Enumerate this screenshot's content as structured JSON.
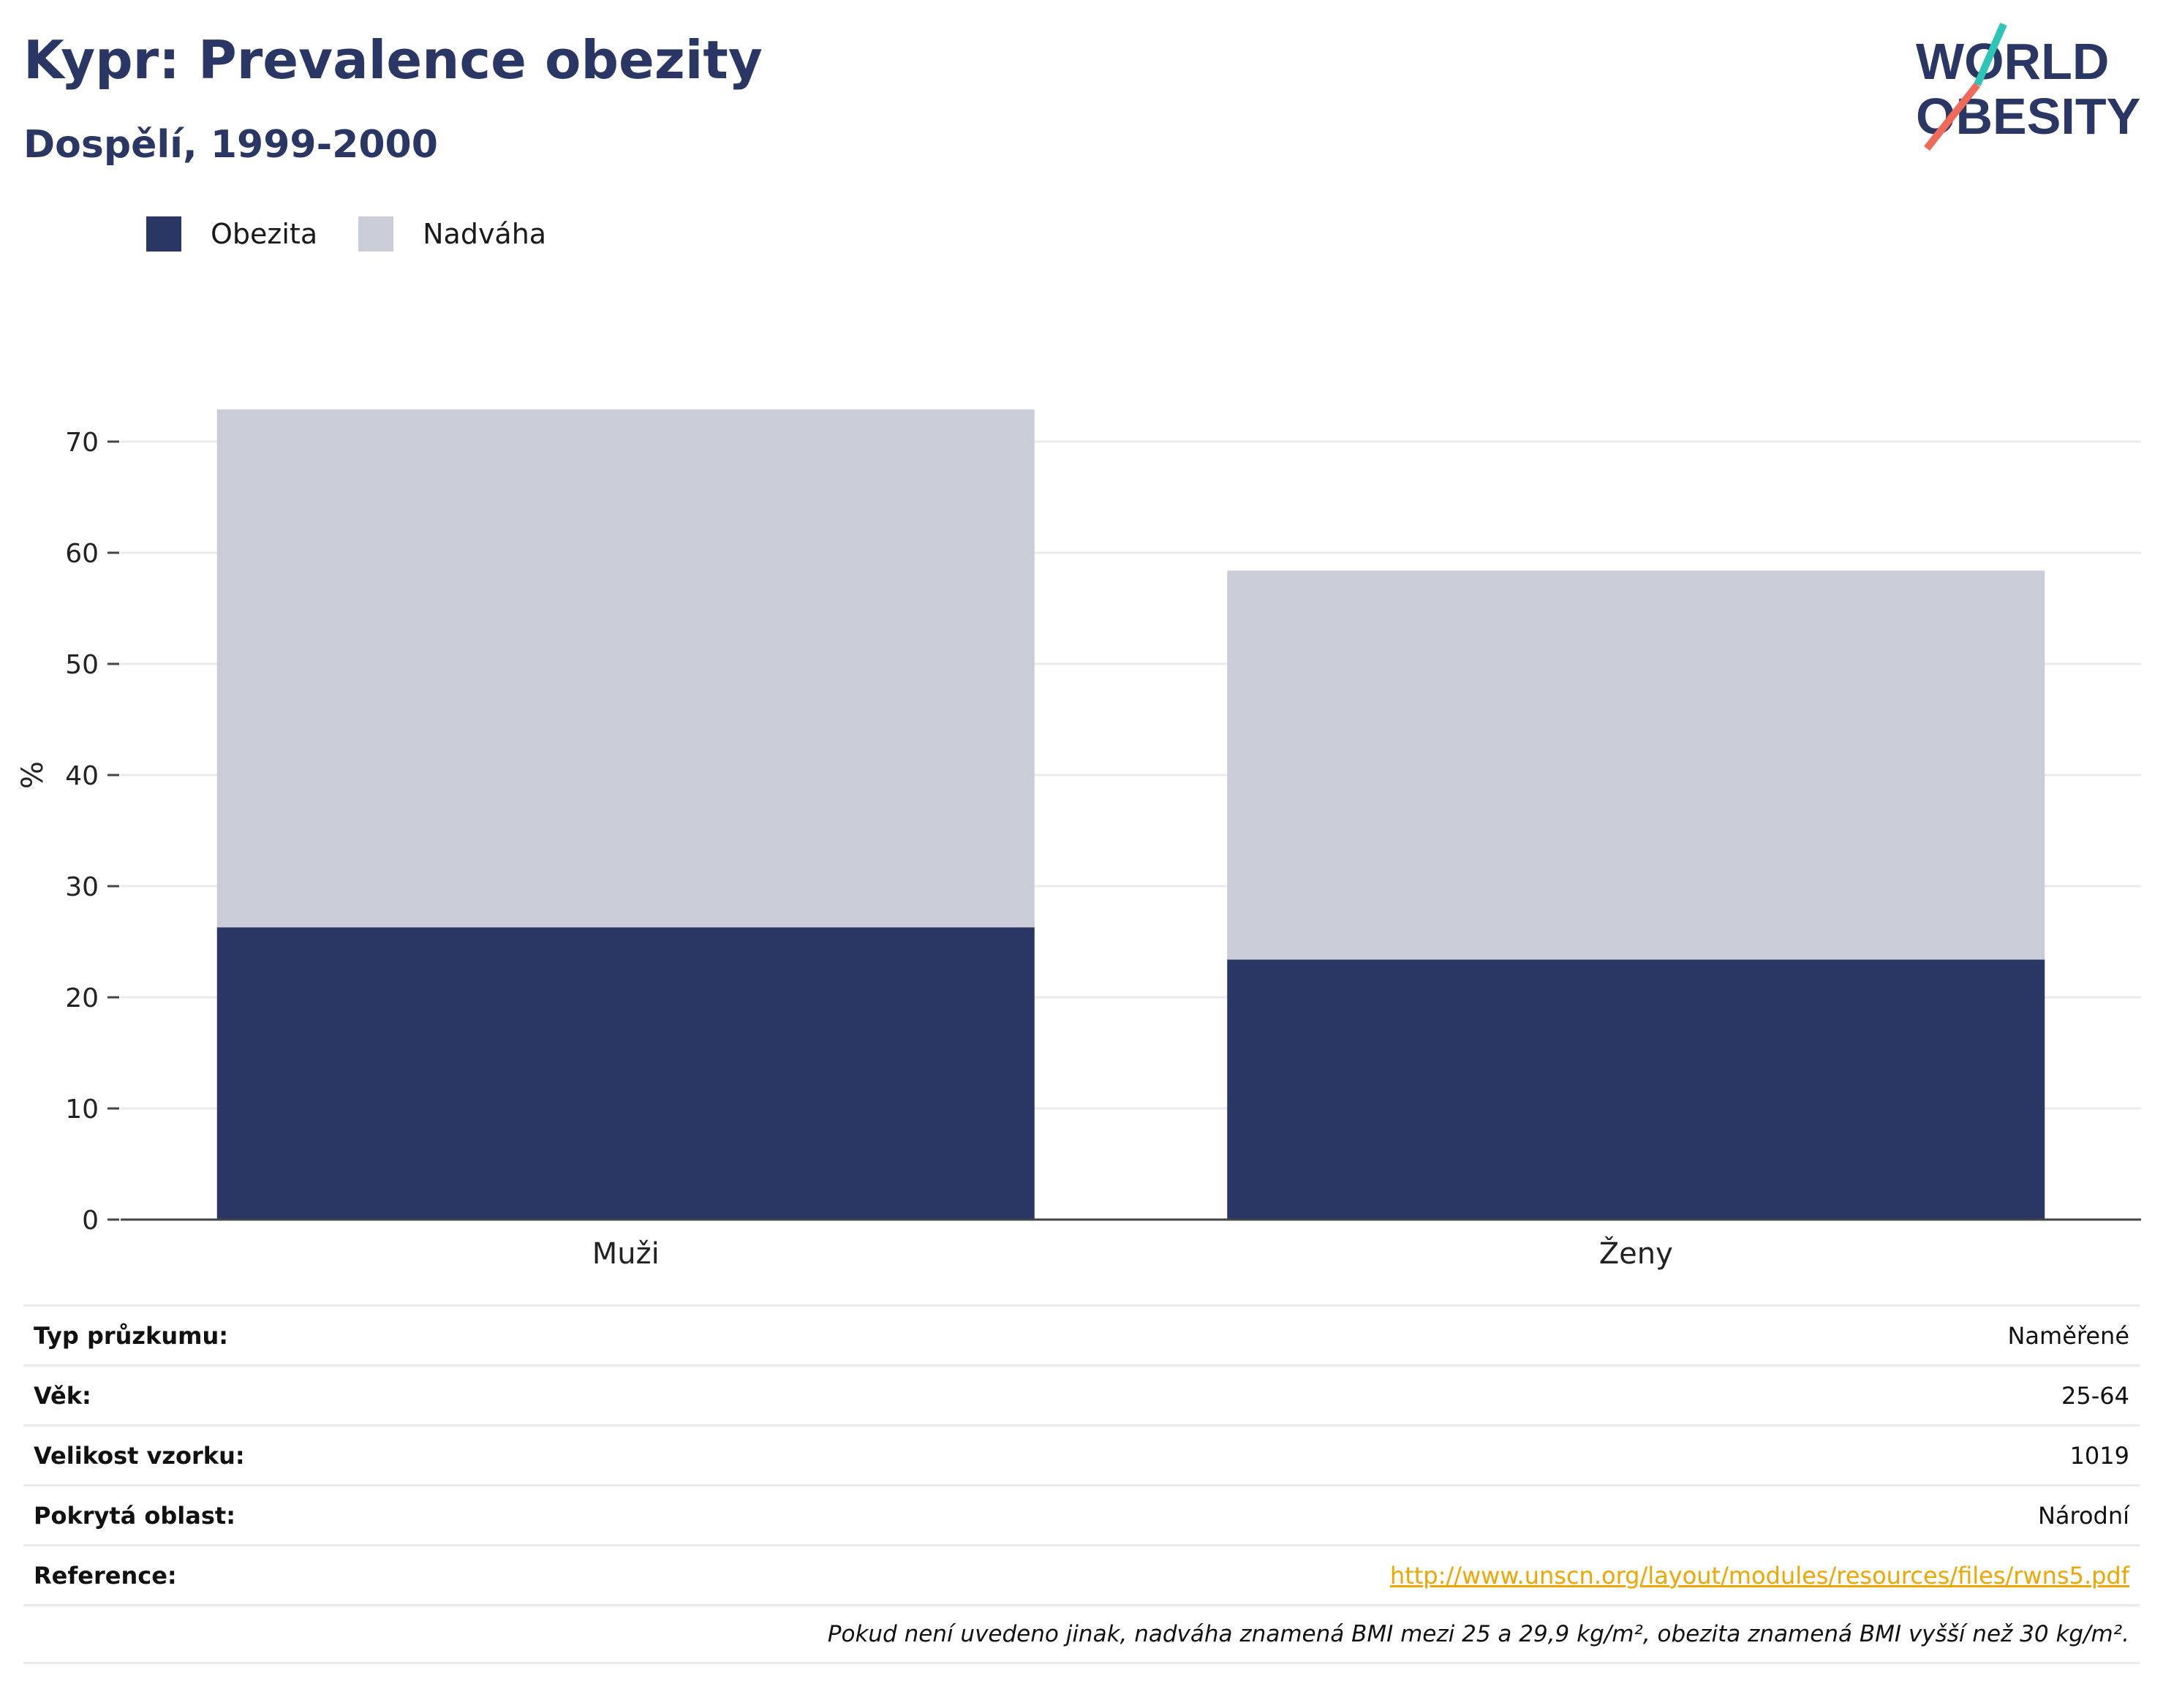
{
  "title": "Kypr: Prevalence obezity",
  "subtitle": "Dospělí, 1999-2000",
  "logo": {
    "line1": "WORLD",
    "line2": "OBESITY",
    "accent_teal": "#2ec4b6",
    "accent_coral": "#f06a5a"
  },
  "colors": {
    "obesity": "#2a3664",
    "overweight": "#cacdd8",
    "title": "#2a3664",
    "link": "#f0a500"
  },
  "chart_data": {
    "type": "bar",
    "stacked": true,
    "categories": [
      "Muži",
      "Ženy"
    ],
    "series": [
      {
        "name": "Obezita",
        "values": [
          26.3,
          23.4
        ]
      },
      {
        "name": "Nadváha",
        "values": [
          46.6,
          35.0
        ]
      }
    ],
    "ylabel": "%",
    "ylim": [
      0,
      75
    ],
    "yticks": [
      0,
      10,
      20,
      30,
      40,
      50,
      60,
      70
    ],
    "grid": true,
    "legend_position": "top-left"
  },
  "info": [
    {
      "label": "Typ průzkumu:",
      "value": "Naměřené"
    },
    {
      "label": "Věk:",
      "value": "25-64"
    },
    {
      "label": "Velikost vzorku:",
      "value": "1019"
    },
    {
      "label": "Pokrytá oblast:",
      "value": "Národní"
    },
    {
      "label": "Reference:",
      "value": "http://www.unscn.org/layout/modules/resources/files/rwns5.pdf",
      "is_link": true
    }
  ],
  "note": "Pokud není uvedeno jinak, nadváha znamená BMI mezi 25 a 29,9 kg/m², obezita znamená BMI vyšší než 30 kg/m²."
}
